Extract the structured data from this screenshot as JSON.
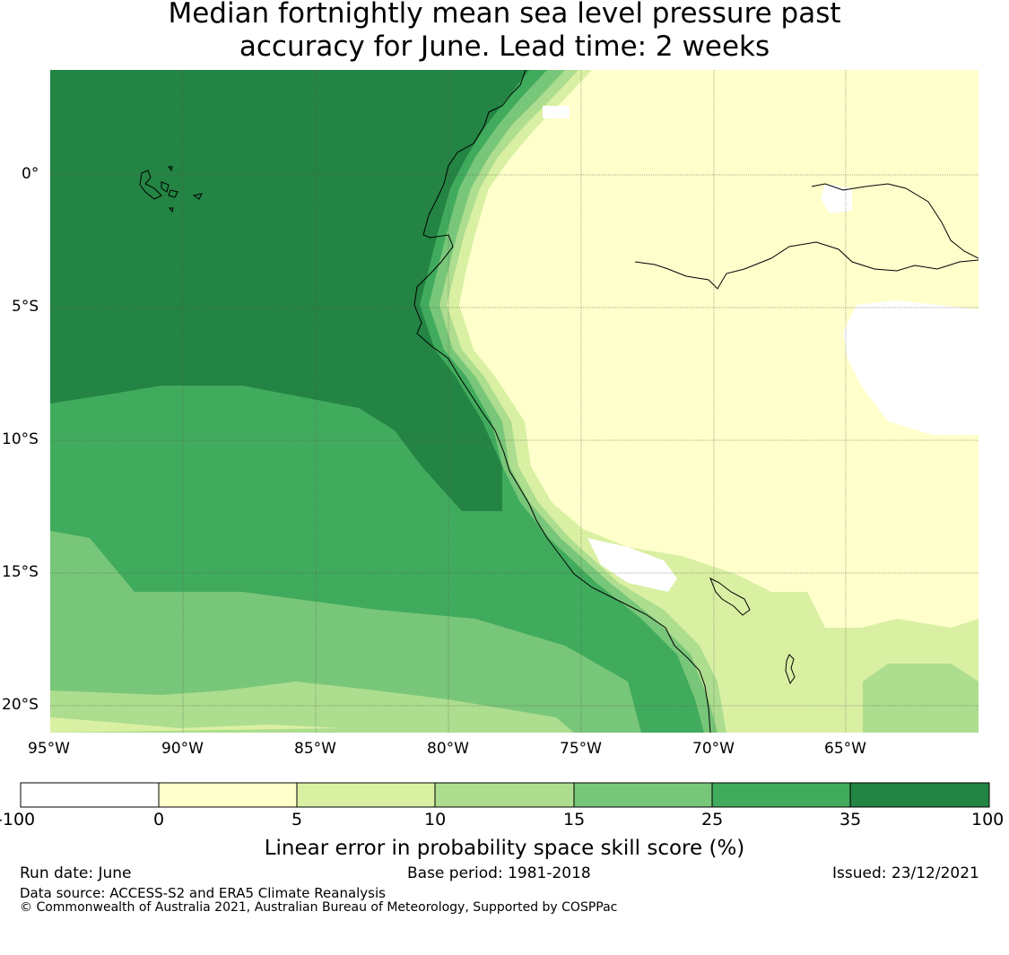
{
  "title": {
    "line1": "Median fortnightly mean sea level pressure past",
    "line2": "accuracy for June. Lead time: 2 weeks"
  },
  "map": {
    "lon_range": [
      -95,
      -60
    ],
    "lat_range": [
      -21,
      4
    ],
    "lon_ticks": [
      "95°W",
      "90°W",
      "85°W",
      "80°W",
      "75°W",
      "70°W",
      "65°W"
    ],
    "lat_ticks": [
      "0°",
      "5°S",
      "10°S",
      "15°S",
      "20°S"
    ],
    "gridlines": true
  },
  "colorbar": {
    "label": "Linear error in probability space skill score (%)",
    "ticks": [
      "-100",
      "0",
      "5",
      "10",
      "15",
      "25",
      "35",
      "100"
    ],
    "colors": [
      "#ffffff",
      "#ffffcc",
      "#d9f0a3",
      "#addd8e",
      "#78c679",
      "#41ab5d",
      "#238443"
    ]
  },
  "footer": {
    "run_date": "Run date: June",
    "base_period": "Base period: 1981-2018",
    "issued": "Issued: 23/12/2021",
    "data_source": "Data source: ACCESS-S2 and ERA5 Climate Reanalysis",
    "copyright": "© Commonwealth of Australia 2021, Australian Bureau of Meteorology, Supported by COSPPac"
  }
}
